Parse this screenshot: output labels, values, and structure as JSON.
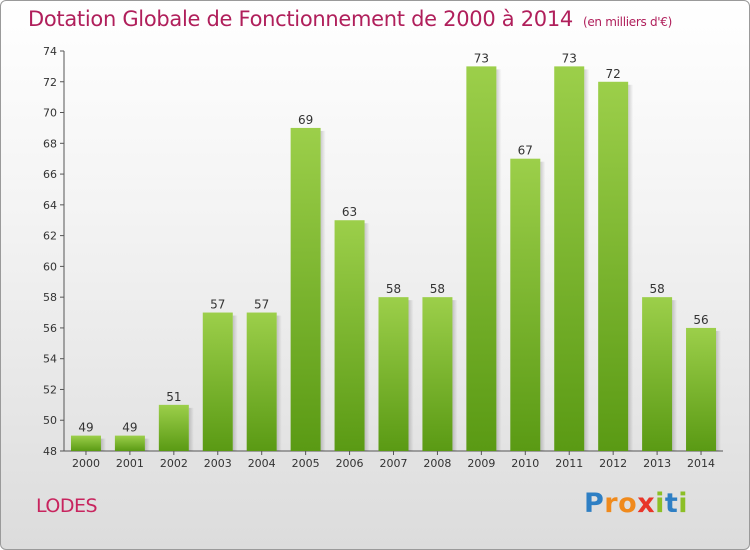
{
  "title": "Dotation Globale de Fonctionnement de 2000 à 2014",
  "subtitle": "(en milliers d'€)",
  "commune": "LODES",
  "logo": {
    "letters": [
      "P",
      "r",
      "o",
      "x",
      "i",
      "t",
      "i"
    ],
    "colors": [
      "#2e7fc4",
      "#f08a1c",
      "#f08a1c",
      "#e8362a",
      "#8cbf26",
      "#2e7fc4",
      "#8cbf26"
    ]
  },
  "colors": {
    "bar_top": "#9ccf4a",
    "bar_bottom": "#5a9a14",
    "title": "#b01f5b"
  },
  "chart_data": {
    "type": "bar",
    "categories": [
      "2000",
      "2001",
      "2002",
      "2003",
      "2004",
      "2005",
      "2006",
      "2007",
      "2008",
      "2009",
      "2010",
      "2011",
      "2012",
      "2013",
      "2014"
    ],
    "values": [
      49,
      49,
      51,
      57,
      57,
      69,
      63,
      58,
      58,
      73,
      67,
      73,
      72,
      58,
      56
    ],
    "ylim": [
      48,
      74
    ],
    "yticks": [
      48,
      50,
      52,
      54,
      56,
      58,
      60,
      62,
      64,
      66,
      68,
      70,
      72,
      74
    ],
    "grid": false,
    "data_labels": true
  }
}
